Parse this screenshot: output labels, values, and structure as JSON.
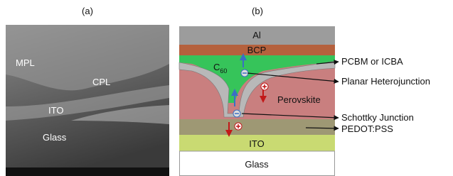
{
  "figure": {
    "panel_a": {
      "label": "(a)",
      "regions": [
        "MPL",
        "CPL",
        "ITO",
        "Glass"
      ]
    },
    "panel_b": {
      "label": "(b)",
      "layers": {
        "al": "Al",
        "bcp": "BCP",
        "c60": {
          "base": "C",
          "sub": "60"
        },
        "perovskite": "Perovskite",
        "ito": "ITO",
        "glass": "Glass"
      },
      "callouts": [
        "PCBM or ICBA",
        "Planar Heterojunction",
        "Schottky Junction",
        "PEDOT:PSS"
      ]
    }
  }
}
